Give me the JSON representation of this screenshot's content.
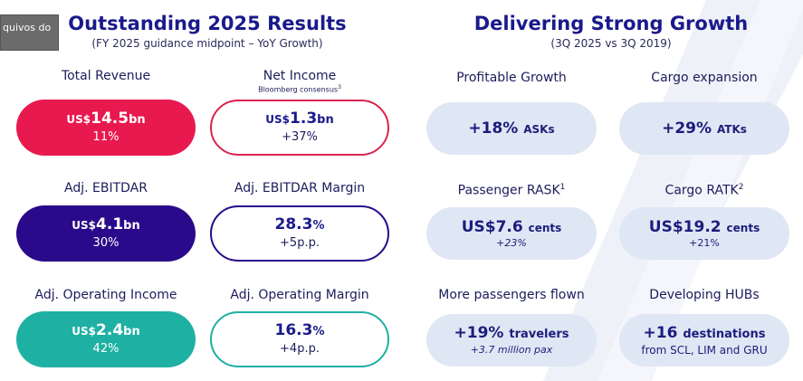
{
  "tooltip": "quivos do",
  "left": {
    "title": "Outstanding 2025 Results",
    "subtitle": "(FY 2025 guidance midpoint  – YoY Growth)",
    "revenue": {
      "label": "Total Revenue",
      "prefix": "US$",
      "value": "14.5",
      "suffix": "bn",
      "growth": "11%"
    },
    "net_income": {
      "label": "Net Income",
      "sublabel": "Bloomberg consensus",
      "sup": "3",
      "prefix": "US$",
      "value": "1.3",
      "suffix": "bn",
      "growth": "+37%"
    },
    "ebitdar": {
      "label": "Adj. EBITDAR",
      "prefix": "US$",
      "value": "4.1",
      "suffix": "bn",
      "growth": "30%"
    },
    "ebitdar_margin": {
      "label": "Adj. EBITDAR Margin",
      "value": "28.3",
      "suffix": "%",
      "growth": "+5p.p."
    },
    "op_income": {
      "label": "Adj. Operating Income",
      "prefix": "US$",
      "value": "2.4",
      "suffix": "bn",
      "growth": "42%"
    },
    "op_margin": {
      "label": "Adj. Operating Margin",
      "value": "16.3",
      "suffix": "%",
      "growth": "+4p.p."
    }
  },
  "right": {
    "title": "Delivering Strong Growth",
    "subtitle": "(3Q 2025 vs 3Q 2019)",
    "profitable": {
      "label": "Profitable Growth",
      "value": "+18%",
      "unit": "ASKs"
    },
    "cargo": {
      "label": "Cargo expansion",
      "value": "+29%",
      "unit": "ATKs"
    },
    "rask": {
      "label": "Passenger RASK",
      "sup": "1",
      "value": "US$7.6",
      "unit": "cents",
      "growth": "+23%"
    },
    "ratk": {
      "label": "Cargo RATK",
      "sup": "2",
      "value": "US$19.2",
      "unit": "cents",
      "growth": "+21%"
    },
    "passengers": {
      "label": "More passengers flown",
      "value": "+19%",
      "unit": "travelers",
      "sub": "+3.7 million pax"
    },
    "hubs": {
      "label": "Developing HUBs",
      "value": "+16",
      "unit": "destinations",
      "sub": "from SCL, LIM and GRU"
    }
  }
}
